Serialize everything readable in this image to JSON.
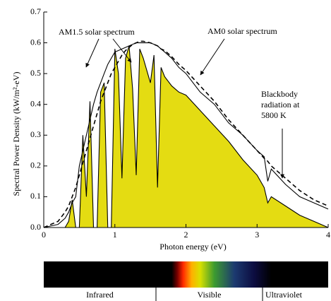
{
  "chart_data": {
    "type": "line",
    "xlabel": "Photon energy (eV)",
    "ylabel": "Spectral Power Density (kW/m²-eV)",
    "x": [
      0,
      0.2,
      0.3,
      0.35,
      0.4,
      0.45,
      0.5,
      0.55,
      0.6,
      0.65,
      0.7,
      0.75,
      0.8,
      0.85,
      0.9,
      0.95,
      1.0,
      1.05,
      1.1,
      1.15,
      1.2,
      1.25,
      1.3,
      1.35,
      1.4,
      1.5,
      1.55,
      1.6,
      1.65,
      1.7,
      1.8,
      1.9,
      2.0,
      2.2,
      2.4,
      2.6,
      2.8,
      3.0,
      3.1,
      3.15,
      3.2,
      3.4,
      3.6,
      3.8,
      4.0
    ],
    "series": [
      {
        "name": "AM1.5 solar spectrum",
        "color": "#000000",
        "fill": "#e4dc12",
        "values": [
          0,
          0,
          0,
          0.02,
          0.09,
          0,
          0,
          0.3,
          0.1,
          0.41,
          0,
          0,
          0.44,
          0.47,
          0,
          0,
          0.58,
          0.5,
          0.16,
          0.55,
          0.59,
          0.45,
          0.17,
          0.58,
          0.55,
          0.47,
          0.56,
          0.13,
          0.52,
          0.49,
          0.46,
          0.44,
          0.43,
          0.38,
          0.33,
          0.28,
          0.22,
          0.17,
          0.13,
          0.08,
          0.1,
          0.07,
          0.04,
          0.02,
          0
        ]
      },
      {
        "name": "AM0 solar spectrum",
        "color": "#000000",
        "values": [
          0,
          0.01,
          0.03,
          0.05,
          0.08,
          0.1,
          0.2,
          0.25,
          0.3,
          0.35,
          0.4,
          0.44,
          0.47,
          0.5,
          0.53,
          0.55,
          0.57,
          0.575,
          0.58,
          0.585,
          0.59,
          0.595,
          0.6,
          0.6,
          0.6,
          0.6,
          0.595,
          0.59,
          0.58,
          0.57,
          0.55,
          0.52,
          0.5,
          0.44,
          0.4,
          0.34,
          0.3,
          0.25,
          0.23,
          0.15,
          0.19,
          0.14,
          0.1,
          0.08,
          0.06
        ]
      },
      {
        "name": "Blackbody radiation at 5800 K",
        "color": "#000000",
        "dashed": true,
        "values": [
          0,
          0.02,
          0.05,
          0.07,
          0.1,
          0.13,
          0.17,
          0.21,
          0.25,
          0.29,
          0.33,
          0.37,
          0.41,
          0.44,
          0.47,
          0.5,
          0.52,
          0.54,
          0.56,
          0.575,
          0.585,
          0.595,
          0.6,
          0.605,
          0.605,
          0.6,
          0.595,
          0.59,
          0.58,
          0.575,
          0.555,
          0.53,
          0.51,
          0.46,
          0.41,
          0.35,
          0.3,
          0.25,
          0.225,
          0.215,
          0.2,
          0.16,
          0.12,
          0.09,
          0.07
        ]
      }
    ],
    "xlim": [
      0,
      4
    ],
    "xticks": [
      0,
      1,
      2,
      3,
      4
    ],
    "ylim": [
      0,
      0.7
    ],
    "yticks": [
      {
        "value": 0,
        "label": "0.0"
      },
      0.1,
      0.2,
      0.3,
      0.4,
      0.5,
      0.6,
      0.7
    ],
    "spectrum_bands": [
      "Infrared",
      "Visible",
      "Ultraviolet"
    ]
  }
}
